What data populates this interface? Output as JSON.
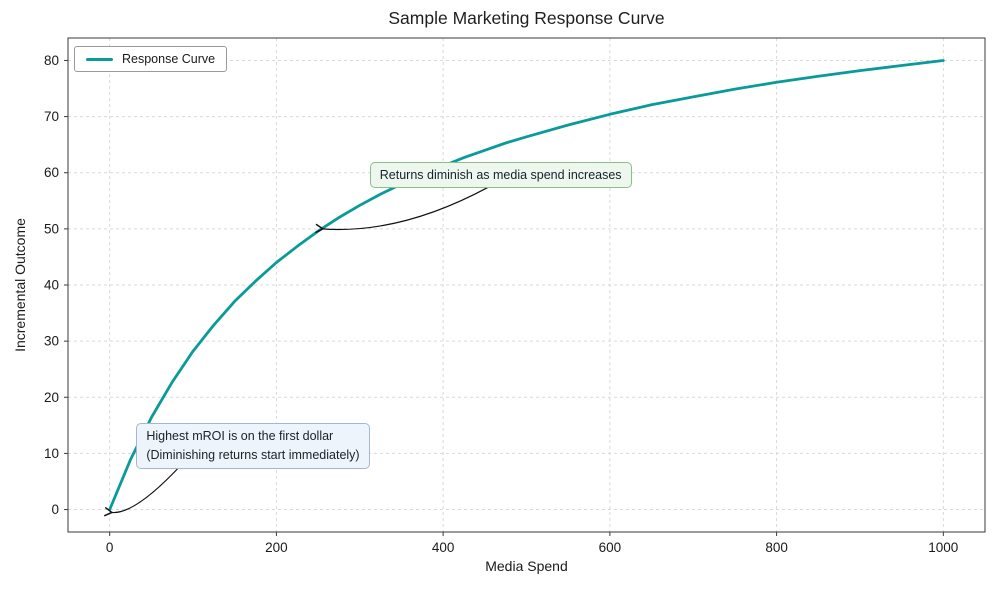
{
  "chart_data": {
    "type": "line",
    "title": "Sample Marketing Response Curve",
    "xlabel": "Media Spend",
    "ylabel": "Incremental Outcome",
    "xlim": [
      -50,
      1050
    ],
    "ylim": [
      -4,
      84
    ],
    "xticks": [
      0,
      200,
      400,
      600,
      800,
      1000
    ],
    "yticks": [
      0,
      10,
      20,
      30,
      40,
      50,
      60,
      70,
      80
    ],
    "grid": true,
    "legend": {
      "position": "upper-left",
      "entries": [
        {
          "label": "Response Curve",
          "color": "#0a9a9a"
        }
      ]
    },
    "series": [
      {
        "name": "Response Curve",
        "color": "#0a9a9a",
        "x": [
          0,
          25,
          50,
          75,
          100,
          125,
          150,
          175,
          200,
          225,
          250,
          275,
          300,
          325,
          350,
          375,
          400,
          425,
          450,
          475,
          500,
          550,
          600,
          650,
          700,
          750,
          800,
          850,
          900,
          950,
          1000
        ],
        "y": [
          0,
          8.9,
          16.4,
          22.7,
          28.2,
          32.9,
          37.1,
          40.7,
          44.0,
          46.9,
          49.6,
          52.0,
          54.2,
          56.2,
          58.0,
          59.7,
          61.2,
          62.7,
          64.0,
          65.3,
          66.4,
          68.5,
          70.4,
          72.1,
          73.5,
          74.9,
          76.1,
          77.2,
          78.2,
          79.1,
          80.0
        ]
      }
    ],
    "annotations": [
      {
        "text": "Returns diminish as media spend increases",
        "bg": "#edf7ed",
        "border": "#8cbe8c",
        "text_xy": [
          312,
          62
        ],
        "arrow_from": [
          455,
          57.5
        ],
        "arrow_ctrl": [
          349,
          49
        ],
        "arrow_to": [
          255,
          50
        ]
      },
      {
        "text": "Highest mROI is on the first dollar\n(Diminishing returns start immediately)",
        "bg": "#eef4fb",
        "border": "#a3b8cf",
        "text_xy": [
          32,
          15.4
        ],
        "arrow_from": [
          88,
          8.3
        ],
        "arrow_ctrl": [
          30,
          -1
        ],
        "arrow_to": [
          2,
          -0.5
        ]
      }
    ]
  }
}
